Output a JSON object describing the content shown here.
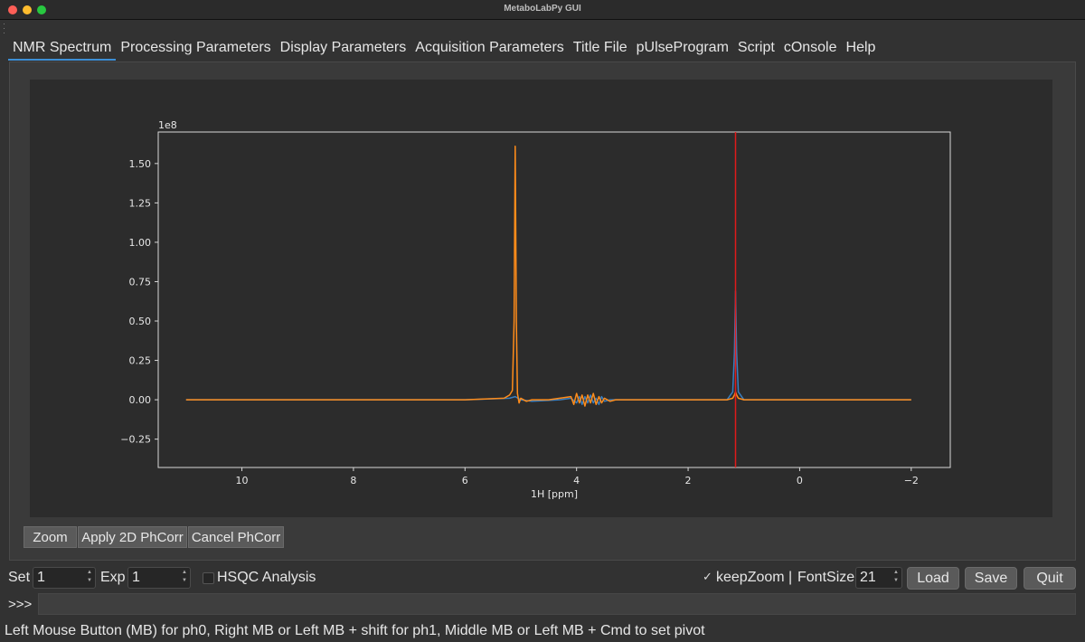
{
  "window": {
    "title": "MetaboLabPy GUI"
  },
  "tabs": [
    {
      "label": "NMR Spectrum"
    },
    {
      "label": "Processing Parameters"
    },
    {
      "label": "Display Parameters"
    },
    {
      "label": "Acquisition Parameters"
    },
    {
      "label": "Title File"
    },
    {
      "label": "pUlseProgram"
    },
    {
      "label": "Script"
    },
    {
      "label": "cOnsole"
    },
    {
      "label": "Help"
    }
  ],
  "plot_buttons": {
    "zoom": "Zoom",
    "apply": "Apply 2D PhCorr",
    "cancel": "Cancel PhCorr"
  },
  "controls": {
    "set_label": "Set",
    "set_value": "1",
    "exp_label": "Exp",
    "exp_value": "1",
    "hsqc_label": "HSQC Analysis",
    "hsqc_checked": false,
    "keepzoom_label": "keepZoom |",
    "keepzoom_checked": true,
    "fontsize_label": "FontSize",
    "fontsize_value": "21",
    "load": "Load",
    "save": "Save",
    "quit": "Quit"
  },
  "console": {
    "prompt": ">>>",
    "value": ""
  },
  "status": "Left Mouse Button (MB) for ph0, Right MB or Left MB + shift for ph1, Middle MB or Left MB + Cmd to set pivot",
  "colors": {
    "accent": "#3d8fd6",
    "series_primary": "#ff8c1a",
    "series_secondary": "#3a7fc1",
    "pivot_line": "#e01b1b"
  },
  "chart_data": {
    "type": "line",
    "xlabel": "1H [ppm]",
    "offset_text": "1e8",
    "xlim": [
      11.5,
      -2.7
    ],
    "ylim": [
      -0.43,
      1.7
    ],
    "x_reversed": true,
    "xticks": [
      10,
      8,
      6,
      4,
      2,
      0,
      -2
    ],
    "xtick_labels": [
      "10",
      "8",
      "6",
      "4",
      "2",
      "0",
      "−2"
    ],
    "yticks": [
      -0.25,
      0.0,
      0.25,
      0.5,
      0.75,
      1.0,
      1.25,
      1.5
    ],
    "ytick_labels": [
      "−0.25",
      "0.00",
      "0.25",
      "0.50",
      "0.75",
      "1.00",
      "1.25",
      "1.50"
    ],
    "pivot_ppm": 1.15,
    "series": [
      {
        "color": "#3a7fc1",
        "x": [
          11.0,
          6.0,
          5.2,
          5.1,
          5.0,
          4.8,
          4.3,
          4.1,
          4.0,
          3.95,
          3.9,
          3.85,
          3.8,
          3.75,
          3.7,
          3.65,
          3.6,
          3.55,
          3.5,
          3.4,
          3.3,
          2.5,
          1.3,
          1.2,
          1.17,
          1.15,
          1.13,
          1.1,
          1.0,
          -2.0
        ],
        "y": [
          0.0,
          0.0,
          0.01,
          0.02,
          0.0,
          -0.01,
          0.0,
          0.01,
          -0.02,
          0.02,
          -0.03,
          0.02,
          -0.02,
          0.03,
          -0.02,
          0.01,
          -0.03,
          0.02,
          -0.01,
          0.0,
          0.0,
          0.0,
          0.0,
          0.05,
          0.3,
          0.69,
          0.3,
          0.05,
          0.0,
          0.0
        ]
      },
      {
        "color": "#ff8c1a",
        "x": [
          11.0,
          6.0,
          5.3,
          5.2,
          5.15,
          5.12,
          5.1,
          5.08,
          5.06,
          5.03,
          5.0,
          4.9,
          4.8,
          4.5,
          4.1,
          4.05,
          4.0,
          3.95,
          3.9,
          3.85,
          3.8,
          3.75,
          3.7,
          3.65,
          3.6,
          3.55,
          3.5,
          3.4,
          3.3,
          2.5,
          1.3,
          1.2,
          1.17,
          1.15,
          1.13,
          1.1,
          1.0,
          -2.0
        ],
        "y": [
          0.0,
          0.0,
          0.01,
          0.03,
          0.06,
          0.5,
          1.61,
          0.5,
          0.04,
          -0.02,
          0.01,
          -0.01,
          0.0,
          0.0,
          0.02,
          -0.03,
          0.04,
          -0.02,
          0.03,
          -0.04,
          0.03,
          -0.02,
          0.04,
          -0.03,
          0.02,
          -0.02,
          0.01,
          -0.01,
          0.0,
          0.0,
          0.0,
          0.01,
          0.03,
          0.05,
          0.03,
          0.01,
          0.0,
          0.0
        ]
      }
    ]
  }
}
